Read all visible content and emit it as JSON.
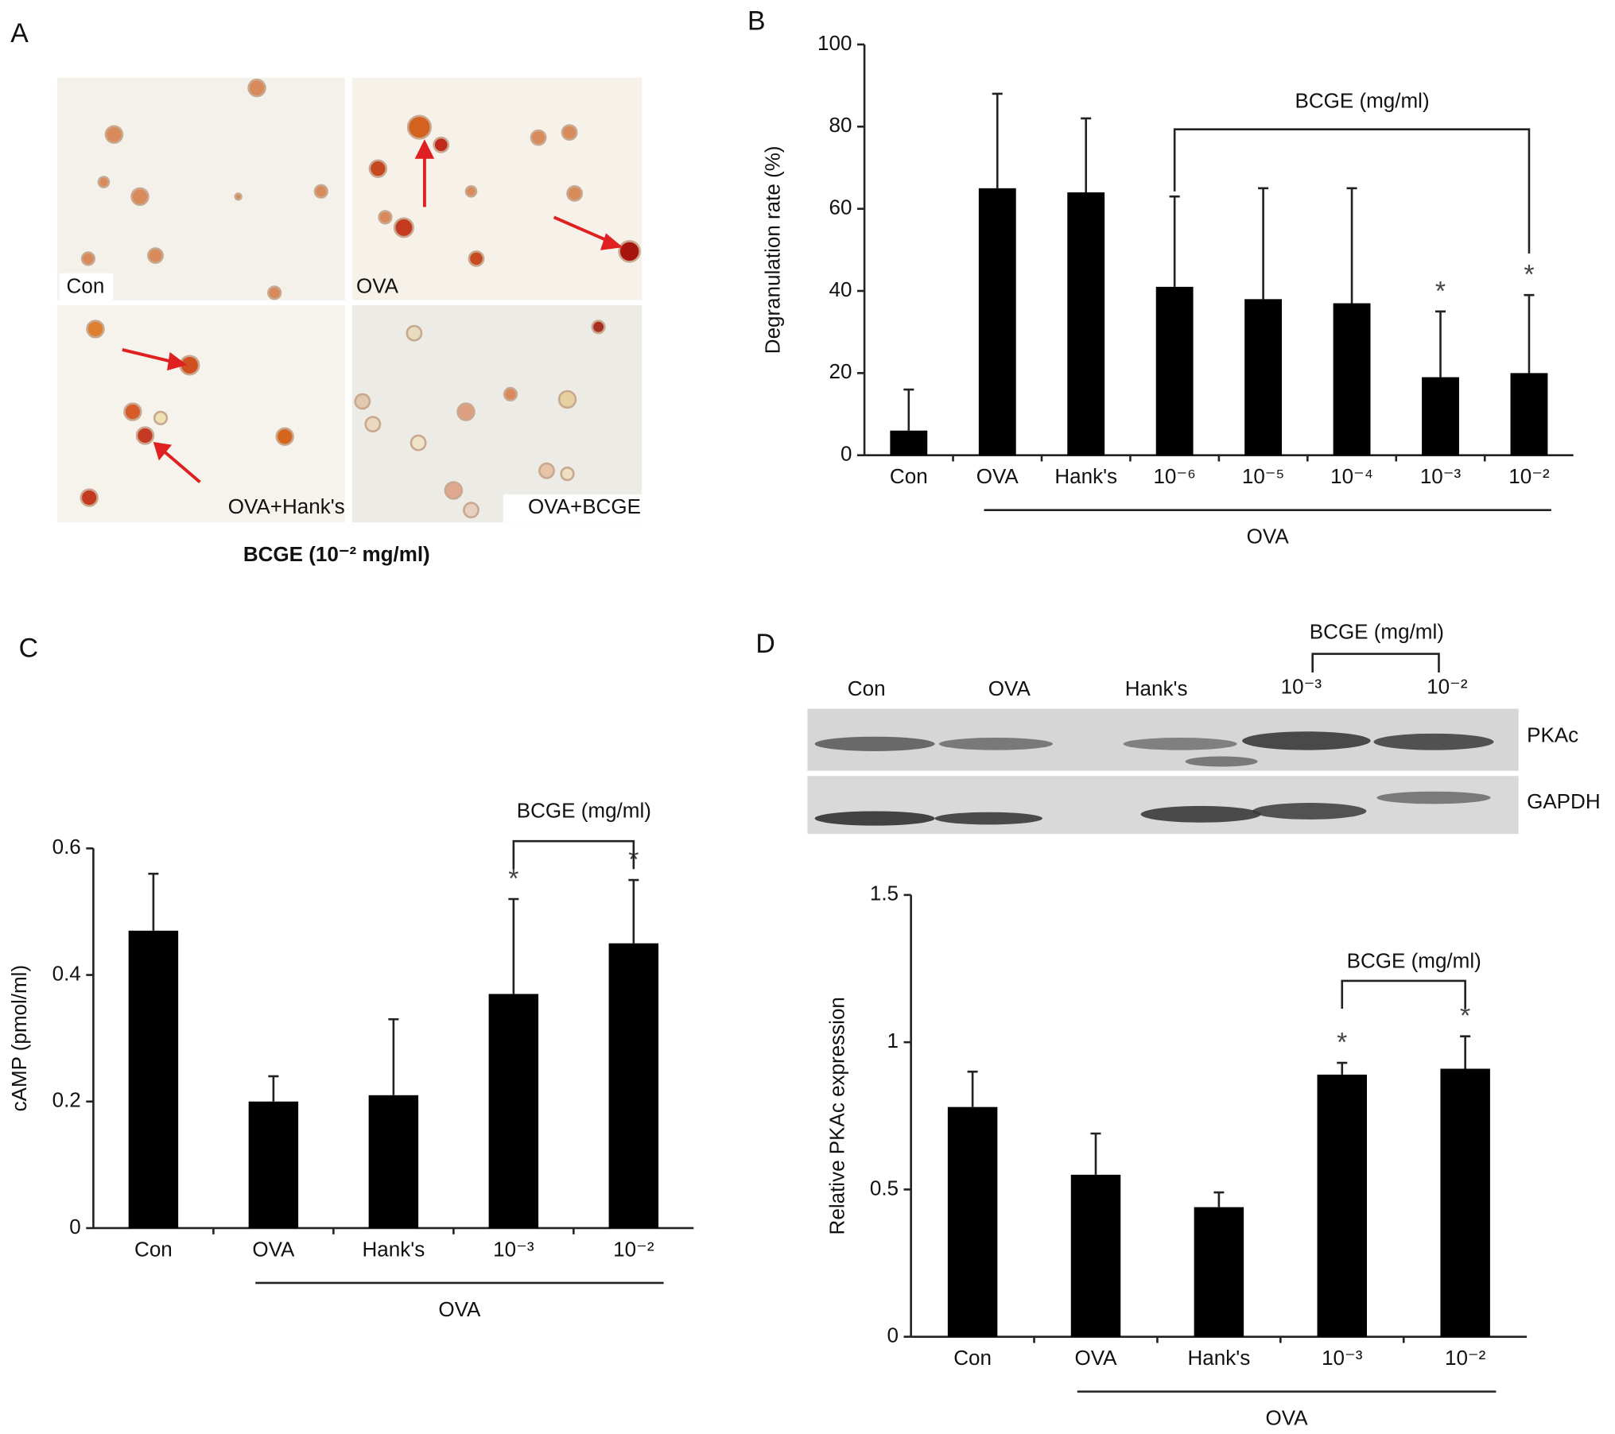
{
  "panel_labels": [
    "A",
    "B",
    "C",
    "D"
  ],
  "micrograph": {
    "labels": [
      "Con",
      "OVA",
      "OVA+Hank's",
      "OVA+BCGE"
    ],
    "caption": "BCGE (10⁻² mg/ml)"
  },
  "blot": {
    "lanes": [
      "Con",
      "OVA",
      "Hank's",
      "10⁻³",
      "10⁻²"
    ],
    "bracket_label": "BCGE (mg/ml)",
    "rows": [
      "PKAc",
      "GAPDH"
    ]
  },
  "chart_data": [
    {
      "type": "bar",
      "ylabel": "Degranulation rate (%)",
      "categories": [
        "Con",
        "OVA",
        "Hank's",
        "10⁻⁶",
        "10⁻⁵",
        "10⁻⁴",
        "10⁻³",
        "10⁻²"
      ],
      "values": [
        6,
        65,
        64,
        41,
        38,
        37,
        19,
        20
      ],
      "errors": [
        10,
        23,
        18,
        22,
        27,
        28,
        16,
        19
      ],
      "markers": [
        null,
        null,
        null,
        null,
        null,
        null,
        "*",
        "*"
      ],
      "bracket_label": "BCGE (mg/ml)",
      "group_label": "OVA",
      "color": "#000000",
      "ylim": [
        0,
        100
      ],
      "yticks": [
        0,
        20,
        40,
        60,
        80,
        100
      ]
    },
    {
      "type": "bar",
      "ylabel": "cAMP (pmol/ml)",
      "categories": [
        "Con",
        "OVA",
        "Hank's",
        "10⁻³",
        "10⁻²"
      ],
      "values": [
        0.47,
        0.2,
        0.21,
        0.37,
        0.45
      ],
      "errors": [
        0.09,
        0.04,
        0.12,
        0.15,
        0.1
      ],
      "markers": [
        null,
        null,
        null,
        "*",
        "*"
      ],
      "bracket_label": "BCGE (mg/ml)",
      "group_label": "OVA",
      "color": "#000000",
      "ylim": [
        0,
        0.6
      ],
      "yticks": [
        0,
        0.2,
        0.4,
        0.6
      ]
    },
    {
      "type": "bar",
      "ylabel": "Relative PKAc expression",
      "categories": [
        "Con",
        "OVA",
        "Hank's",
        "10⁻³",
        "10⁻²"
      ],
      "values": [
        0.78,
        0.55,
        0.44,
        0.89,
        0.91
      ],
      "errors": [
        0.12,
        0.14,
        0.05,
        0.04,
        0.11
      ],
      "markers": [
        null,
        null,
        null,
        "*",
        "*"
      ],
      "bracket_label": "BCGE (mg/ml)",
      "group_label": "OVA",
      "color": "#000000",
      "ylim": [
        0,
        1.5
      ],
      "yticks": [
        0,
        0.5,
        1,
        1.5
      ]
    }
  ]
}
